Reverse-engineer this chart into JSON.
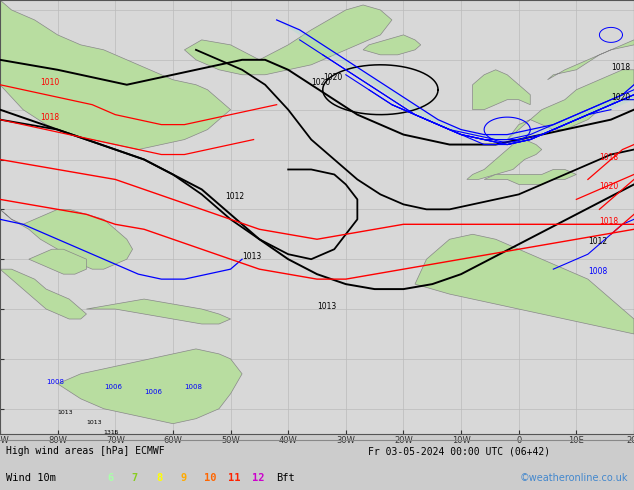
{
  "title_left": "High wind areas [hPa] ECMWF",
  "title_right": "Fr 03-05-2024 00:00 UTC (06+42)",
  "subtitle_left": "Wind 10m",
  "bft_labels": [
    "6",
    "7",
    "8",
    "9",
    "10",
    "11",
    "12"
  ],
  "bft_colors": [
    "#aaffaa",
    "#88cc22",
    "#ffff00",
    "#ffaa00",
    "#ff6600",
    "#ff2200",
    "#cc00cc"
  ],
  "bft_suffix": "Bft",
  "copyright": "©weatheronline.co.uk",
  "ocean_color": "#d8d8d8",
  "land_color": "#b8dda0",
  "land_edge_color": "#888888",
  "grid_color": "#bbbbbb",
  "figsize": [
    6.34,
    4.9
  ],
  "dpi": 100,
  "lon_min": -90,
  "lon_max": 20,
  "lat_min": -15,
  "lat_max": 72,
  "info_bar_height": 0.115
}
